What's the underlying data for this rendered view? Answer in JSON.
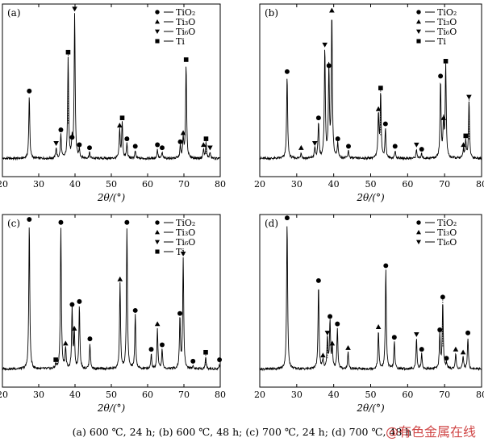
{
  "caption": "(a) 600 ℃, 24 h; (b) 600 ℃, 48 h; (c) 700 ℃, 24 h; (d) 700 ℃, 48 h",
  "watermark": "@有色金属在线",
  "colors": {
    "line": "#000000",
    "background": "#ffffff",
    "watermark": "#c82828"
  },
  "marker_icons": {
    "TiO2": "filled-circle",
    "Ti3O": "up-triangle",
    "Ti6O": "down-triangle",
    "Ti": "filled-square"
  },
  "chart_data": [
    {
      "panel_label": "(a)",
      "type": "line",
      "xlabel": "2θ/(°)",
      "xlim": [
        20,
        80
      ],
      "x_ticks": [
        20,
        30,
        40,
        50,
        60,
        70,
        80
      ],
      "ylim": [
        0,
        100
      ],
      "legend_position": "top-right",
      "legend": [
        {
          "marker": "TiO2",
          "label": "TiO₂"
        },
        {
          "marker": "Ti3O",
          "label": "Ti₃O"
        },
        {
          "marker": "Ti6O",
          "label": "Ti₆O"
        },
        {
          "marker": "Ti",
          "label": "Ti"
        }
      ],
      "peaks": [
        {
          "x": 27.4,
          "h": 42,
          "m": "TiO2"
        },
        {
          "x": 34.8,
          "h": 7,
          "m": "Ti6O"
        },
        {
          "x": 36.1,
          "h": 16,
          "m": "TiO2"
        },
        {
          "x": 38.1,
          "h": 68,
          "m": "Ti",
          "dotted": true
        },
        {
          "x": 39.2,
          "h": 11,
          "m": "TiO2"
        },
        {
          "x": 39.9,
          "h": 97,
          "m": "Ti6O"
        },
        {
          "x": 41.2,
          "h": 6,
          "m": "TiO2"
        },
        {
          "x": 44.0,
          "h": 4,
          "m": "TiO2"
        },
        {
          "x": 52.3,
          "h": 19,
          "m": "Ti3O"
        },
        {
          "x": 53.0,
          "h": 24,
          "m": "Ti"
        },
        {
          "x": 54.3,
          "h": 10,
          "m": "TiO2"
        },
        {
          "x": 56.6,
          "h": 5,
          "m": "TiO2"
        },
        {
          "x": 62.7,
          "h": 6,
          "m": "TiO2"
        },
        {
          "x": 64.0,
          "h": 4,
          "m": "TiO2"
        },
        {
          "x": 69.0,
          "h": 8,
          "m": "TiO2"
        },
        {
          "x": 69.8,
          "h": 14,
          "m": "Ti3O"
        },
        {
          "x": 70.6,
          "h": 63,
          "m": "Ti"
        },
        {
          "x": 75.4,
          "h": 6,
          "m": "Ti3O"
        },
        {
          "x": 76.1,
          "h": 10,
          "m": "Ti",
          "dotted": true
        },
        {
          "x": 77.2,
          "h": 4,
          "m": "Ti6O"
        }
      ]
    },
    {
      "panel_label": "(b)",
      "type": "line",
      "xlabel": "2θ/(°)",
      "xlim": [
        20,
        80
      ],
      "x_ticks": [
        20,
        30,
        40,
        50,
        60,
        70,
        80
      ],
      "ylim": [
        0,
        100
      ],
      "legend_position": "top-right",
      "legend": [
        {
          "marker": "TiO2",
          "label": "TiO₂"
        },
        {
          "marker": "Ti3O",
          "label": "Ti₃O"
        },
        {
          "marker": "Ti6O",
          "label": "Ti₆O"
        },
        {
          "marker": "Ti",
          "label": "Ti"
        }
      ],
      "peaks": [
        {
          "x": 27.4,
          "h": 55,
          "m": "TiO2"
        },
        {
          "x": 31.2,
          "h": 4,
          "m": "Ti3O"
        },
        {
          "x": 34.9,
          "h": 7,
          "m": "Ti6O"
        },
        {
          "x": 35.9,
          "h": 24,
          "m": "TiO2"
        },
        {
          "x": 37.6,
          "h": 73,
          "m": "Ti6O"
        },
        {
          "x": 38.7,
          "h": 59,
          "m": "TiO2"
        },
        {
          "x": 39.5,
          "h": 96,
          "m": "Ti3O"
        },
        {
          "x": 41.1,
          "h": 10,
          "m": "TiO2"
        },
        {
          "x": 44.0,
          "h": 5,
          "m": "TiO2"
        },
        {
          "x": 52.1,
          "h": 30,
          "m": "Ti3O"
        },
        {
          "x": 52.7,
          "h": 44,
          "m": "Ti",
          "dotted": true
        },
        {
          "x": 54.0,
          "h": 20,
          "m": "TiO2"
        },
        {
          "x": 56.6,
          "h": 5,
          "m": "TiO2"
        },
        {
          "x": 62.4,
          "h": 6,
          "m": "Ti6O"
        },
        {
          "x": 63.8,
          "h": 3,
          "m": "TiO2"
        },
        {
          "x": 68.9,
          "h": 52,
          "m": "TiO2"
        },
        {
          "x": 69.7,
          "h": 24,
          "m": "Ti3O"
        },
        {
          "x": 70.3,
          "h": 62,
          "m": "Ti"
        },
        {
          "x": 75.1,
          "h": 6,
          "m": "Ti3O"
        },
        {
          "x": 75.7,
          "h": 12,
          "m": "Ti"
        },
        {
          "x": 76.6,
          "h": 38,
          "m": "Ti6O",
          "dotted": true
        }
      ]
    },
    {
      "panel_label": "(c)",
      "type": "line",
      "xlabel": "2θ/(°)",
      "xlim": [
        20,
        80
      ],
      "x_ticks": [
        20,
        30,
        40,
        50,
        60,
        70,
        80
      ],
      "ylim": [
        0,
        100
      ],
      "legend_position": "top-right",
      "legend": [
        {
          "marker": "TiO2",
          "label": "TiO₂"
        },
        {
          "marker": "Ti3O",
          "label": "Ti₃O"
        },
        {
          "marker": "Ti6O",
          "label": "Ti₆O"
        },
        {
          "marker": "Ti",
          "label": "Ti"
        }
      ],
      "peaks": [
        {
          "x": 27.4,
          "h": 97,
          "m": "TiO2"
        },
        {
          "x": 34.7,
          "h": 3,
          "m": "Ti"
        },
        {
          "x": 36.1,
          "h": 95,
          "m": "TiO2"
        },
        {
          "x": 37.4,
          "h": 14,
          "m": "Ti3O"
        },
        {
          "x": 39.2,
          "h": 40,
          "m": "TiO2"
        },
        {
          "x": 39.8,
          "h": 24,
          "m": "Ti3O"
        },
        {
          "x": 41.2,
          "h": 42,
          "m": "TiO2"
        },
        {
          "x": 44.1,
          "h": 17,
          "m": "TiO2"
        },
        {
          "x": 52.4,
          "h": 57,
          "m": "Ti3O"
        },
        {
          "x": 54.3,
          "h": 95,
          "m": "TiO2"
        },
        {
          "x": 56.6,
          "h": 36,
          "m": "TiO2"
        },
        {
          "x": 61.0,
          "h": 10,
          "m": "TiO2"
        },
        {
          "x": 62.7,
          "h": 27,
          "m": "Ti3O"
        },
        {
          "x": 64.0,
          "h": 13,
          "m": "TiO2"
        },
        {
          "x": 68.9,
          "h": 34,
          "m": "TiO2"
        },
        {
          "x": 69.8,
          "h": 74,
          "m": "Ti6O"
        },
        {
          "x": 72.5,
          "h": 2,
          "m": "TiO2"
        },
        {
          "x": 76.0,
          "h": 8,
          "m": "Ti",
          "dotted": true
        },
        {
          "x": 79.8,
          "h": 3,
          "m": "TiO2"
        }
      ]
    },
    {
      "panel_label": "(d)",
      "type": "line",
      "xlabel": "2θ/(°)",
      "xlim": [
        20,
        80
      ],
      "x_ticks": [
        20,
        30,
        40,
        50,
        60,
        70,
        80
      ],
      "ylim": [
        0,
        100
      ],
      "legend_position": "top-right",
      "legend": [
        {
          "marker": "TiO2",
          "label": "TiO₂"
        },
        {
          "marker": "Ti3O",
          "label": "Ti₃O"
        },
        {
          "marker": "Ti6O",
          "label": "Ti₆O"
        }
      ],
      "peaks": [
        {
          "x": 27.4,
          "h": 98,
          "m": "TiO2"
        },
        {
          "x": 35.9,
          "h": 56,
          "m": "TiO2"
        },
        {
          "x": 37.1,
          "h": 6,
          "m": "Ti3O"
        },
        {
          "x": 38.3,
          "h": 21,
          "m": "Ti6O",
          "dotted": true
        },
        {
          "x": 39.0,
          "h": 32,
          "m": "TiO2"
        },
        {
          "x": 39.6,
          "h": 14,
          "m": "Ti3O"
        },
        {
          "x": 41.0,
          "h": 27,
          "m": "TiO2"
        },
        {
          "x": 43.9,
          "h": 11,
          "m": "Ti3O"
        },
        {
          "x": 52.1,
          "h": 25,
          "m": "Ti3O"
        },
        {
          "x": 54.1,
          "h": 66,
          "m": "TiO2"
        },
        {
          "x": 56.4,
          "h": 18,
          "m": "TiO2"
        },
        {
          "x": 62.4,
          "h": 20,
          "m": "Ti6O"
        },
        {
          "x": 63.8,
          "h": 10,
          "m": "TiO2"
        },
        {
          "x": 68.7,
          "h": 23,
          "m": "TiO2"
        },
        {
          "x": 69.5,
          "h": 45,
          "m": "TiO2",
          "dotted": true
        },
        {
          "x": 70.5,
          "h": 4,
          "m": "TiO2"
        },
        {
          "x": 73.0,
          "h": 10,
          "m": "Ti3O"
        },
        {
          "x": 75.0,
          "h": 8,
          "m": "Ti3O"
        },
        {
          "x": 76.3,
          "h": 21,
          "m": "TiO2"
        }
      ]
    }
  ]
}
